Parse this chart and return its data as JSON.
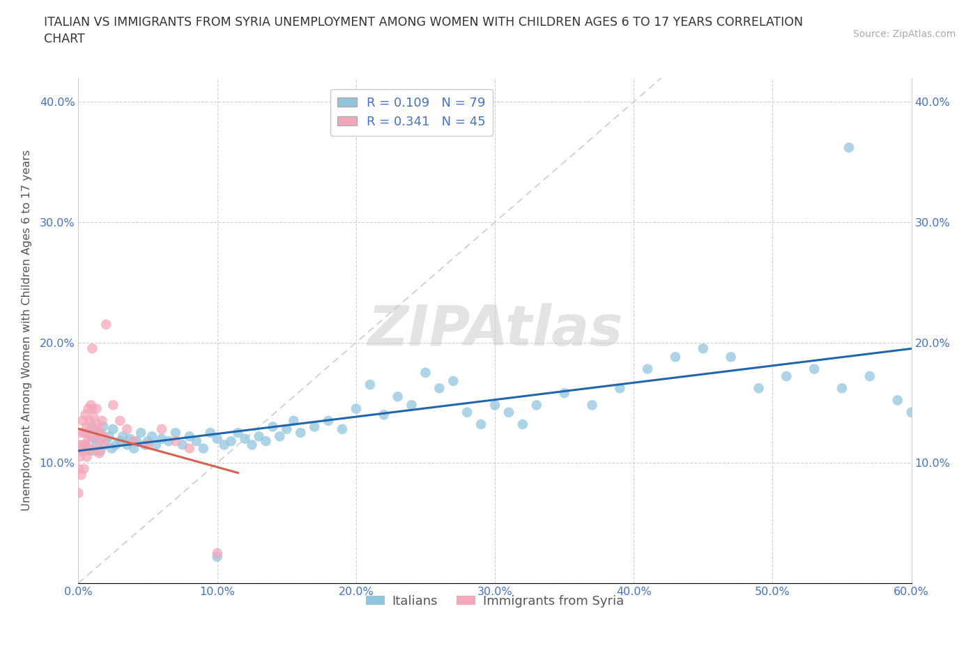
{
  "title": "ITALIAN VS IMMIGRANTS FROM SYRIA UNEMPLOYMENT AMONG WOMEN WITH CHILDREN AGES 6 TO 17 YEARS CORRELATION\nCHART",
  "source": "Source: ZipAtlas.com",
  "ylabel": "Unemployment Among Women with Children Ages 6 to 17 years",
  "xlim": [
    0.0,
    0.6
  ],
  "ylim": [
    0.0,
    0.42
  ],
  "xticks": [
    0.0,
    0.1,
    0.2,
    0.3,
    0.4,
    0.5,
    0.6
  ],
  "yticks": [
    0.0,
    0.1,
    0.2,
    0.3,
    0.4
  ],
  "xticklabels": [
    "0.0%",
    "10.0%",
    "20.0%",
    "30.0%",
    "40.0%",
    "50.0%",
    "60.0%"
  ],
  "yticklabels": [
    "",
    "10.0%",
    "20.0%",
    "30.0%",
    "40.0%"
  ],
  "right_yticklabels": [
    "",
    "10.0%",
    "20.0%",
    "30.0%",
    "40.0%"
  ],
  "italians_color": "#92c5de",
  "syria_color": "#f4a7b9",
  "italians_line_color": "#2166ac",
  "syria_line_color": "#d6604d",
  "diagonal_color": "#cccccc",
  "R_italians": 0.109,
  "N_italians": 79,
  "R_syria": 0.341,
  "N_syria": 45,
  "legend_label_italians": "Italians",
  "legend_label_syria": "Immigrants from Syria",
  "watermark": "ZIPAtlas",
  "italians_x": [
    0.005,
    0.007,
    0.009,
    0.01,
    0.012,
    0.013,
    0.015,
    0.016,
    0.018,
    0.02,
    0.022,
    0.024,
    0.025,
    0.027,
    0.03,
    0.032,
    0.035,
    0.037,
    0.04,
    0.042,
    0.045,
    0.048,
    0.05,
    0.053,
    0.056,
    0.06,
    0.065,
    0.07,
    0.075,
    0.08,
    0.085,
    0.09,
    0.095,
    0.1,
    0.105,
    0.11,
    0.115,
    0.12,
    0.125,
    0.13,
    0.135,
    0.14,
    0.145,
    0.15,
    0.155,
    0.16,
    0.17,
    0.18,
    0.19,
    0.2,
    0.21,
    0.22,
    0.23,
    0.24,
    0.25,
    0.26,
    0.27,
    0.28,
    0.29,
    0.3,
    0.31,
    0.32,
    0.33,
    0.35,
    0.37,
    0.39,
    0.41,
    0.43,
    0.45,
    0.47,
    0.49,
    0.51,
    0.53,
    0.55,
    0.57,
    0.59,
    0.6,
    0.555,
    0.1
  ],
  "italians_y": [
    0.115,
    0.125,
    0.11,
    0.13,
    0.12,
    0.115,
    0.125,
    0.11,
    0.13,
    0.118,
    0.122,
    0.112,
    0.128,
    0.115,
    0.118,
    0.122,
    0.115,
    0.12,
    0.112,
    0.118,
    0.125,
    0.115,
    0.118,
    0.122,
    0.115,
    0.12,
    0.118,
    0.125,
    0.115,
    0.122,
    0.118,
    0.112,
    0.125,
    0.12,
    0.115,
    0.118,
    0.125,
    0.12,
    0.115,
    0.122,
    0.118,
    0.13,
    0.122,
    0.128,
    0.135,
    0.125,
    0.13,
    0.135,
    0.128,
    0.145,
    0.165,
    0.14,
    0.155,
    0.148,
    0.175,
    0.162,
    0.168,
    0.142,
    0.132,
    0.148,
    0.142,
    0.132,
    0.148,
    0.158,
    0.148,
    0.162,
    0.178,
    0.188,
    0.195,
    0.188,
    0.162,
    0.172,
    0.178,
    0.162,
    0.172,
    0.152,
    0.142,
    0.362,
    0.022
  ],
  "syria_x": [
    0.0,
    0.0,
    0.0,
    0.001,
    0.001,
    0.002,
    0.002,
    0.003,
    0.003,
    0.004,
    0.004,
    0.005,
    0.005,
    0.005,
    0.006,
    0.006,
    0.007,
    0.007,
    0.008,
    0.008,
    0.009,
    0.009,
    0.01,
    0.01,
    0.011,
    0.012,
    0.012,
    0.013,
    0.014,
    0.015,
    0.015,
    0.016,
    0.017,
    0.018,
    0.019,
    0.02,
    0.025,
    0.03,
    0.035,
    0.04,
    0.05,
    0.06,
    0.07,
    0.08,
    0.1
  ],
  "syria_y": [
    0.115,
    0.095,
    0.075,
    0.105,
    0.125,
    0.11,
    0.09,
    0.115,
    0.135,
    0.125,
    0.095,
    0.11,
    0.14,
    0.115,
    0.13,
    0.105,
    0.145,
    0.12,
    0.135,
    0.112,
    0.148,
    0.122,
    0.195,
    0.145,
    0.138,
    0.128,
    0.11,
    0.145,
    0.132,
    0.118,
    0.108,
    0.125,
    0.135,
    0.122,
    0.115,
    0.215,
    0.148,
    0.135,
    0.128,
    0.118,
    0.115,
    0.128,
    0.118,
    0.112,
    0.025
  ]
}
